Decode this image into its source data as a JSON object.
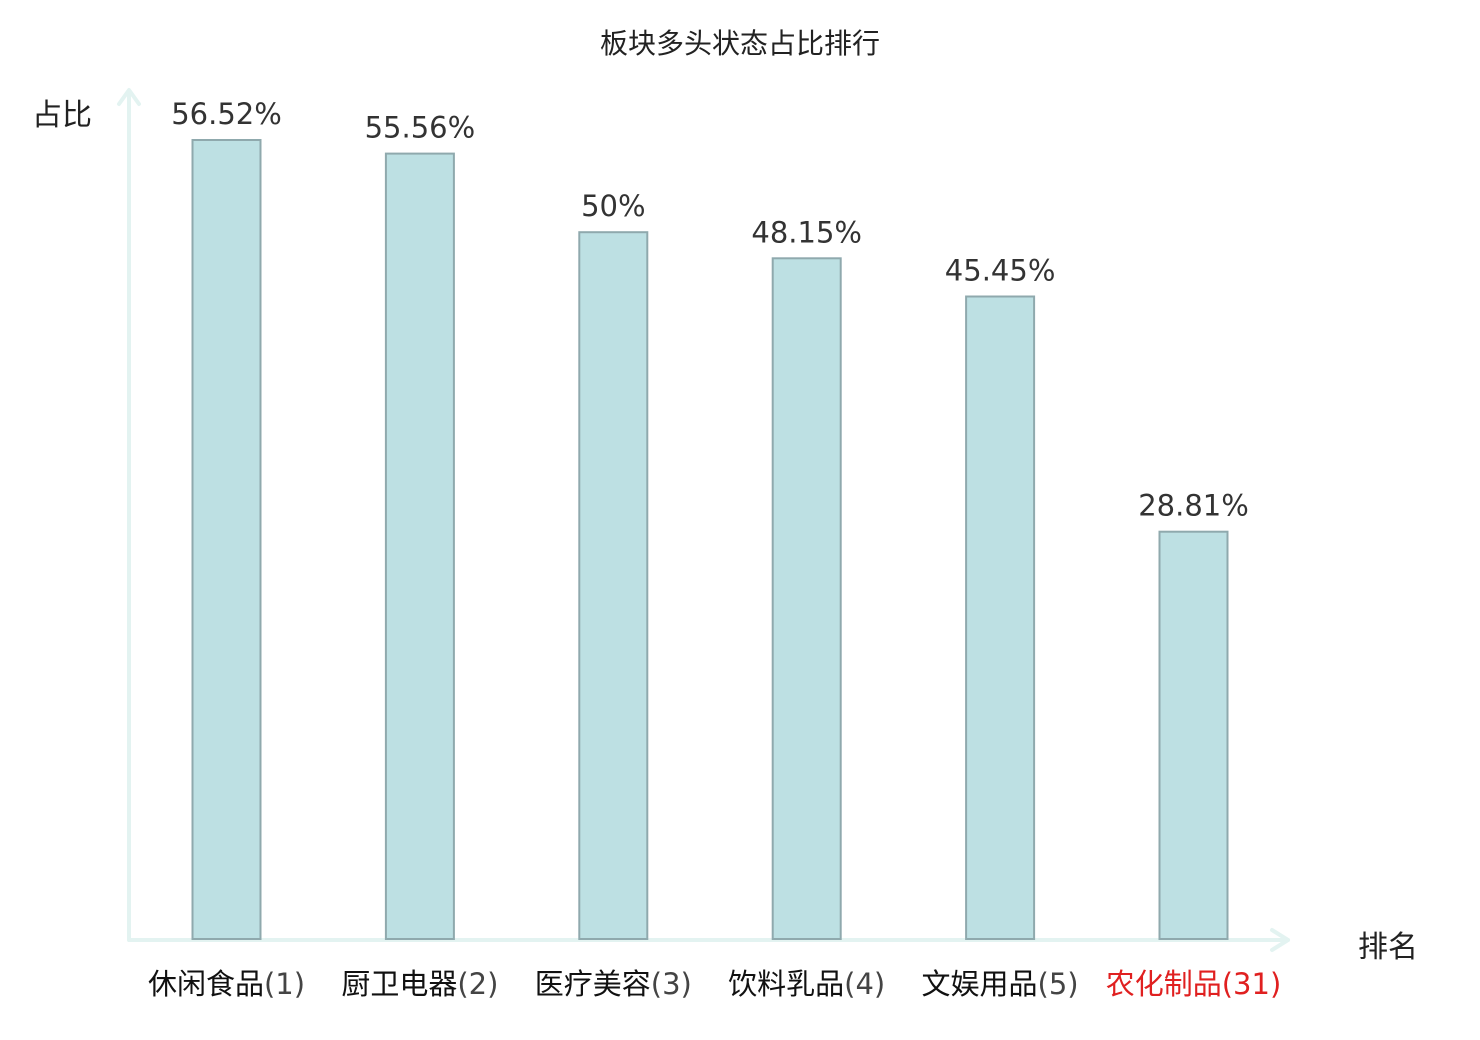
{
  "chart_data": {
    "type": "bar",
    "title": "板块多头状态占比排行",
    "xlabel": "排名",
    "ylabel": "占比",
    "categories": [
      "休闲食品",
      "厨卫电器",
      "医疗美容",
      "饮料乳品",
      "文娱用品",
      "农化制品"
    ],
    "ranks": [
      "(1)",
      "(2)",
      "(3)",
      "(4)",
      "(5)",
      "(31)"
    ],
    "values": [
      56.52,
      55.56,
      50,
      48.15,
      45.45,
      28.81
    ],
    "value_labels": [
      "56.52%",
      "55.56%",
      "50%",
      "48.15%",
      "45.45%",
      "28.81%"
    ],
    "highlighted_category": "农化制品",
    "ylim": [
      0,
      60
    ],
    "grid": false,
    "legend": "none",
    "colors": {
      "bar_fill": "#bde0e3",
      "bar_stroke": "#8fa9ad",
      "axis": "#e3f3f1",
      "label_text": "#333333",
      "highlight_text": "#e02020"
    }
  }
}
